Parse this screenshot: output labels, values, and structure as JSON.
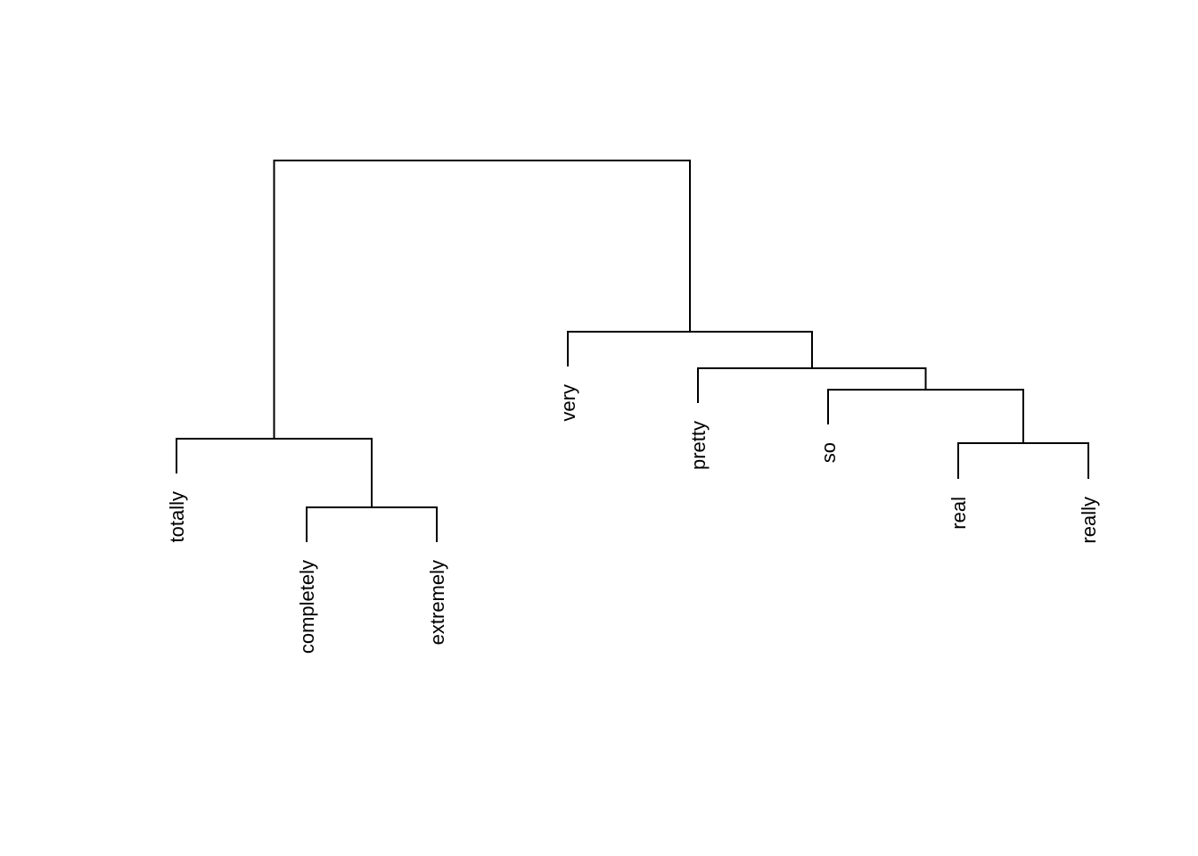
{
  "diagram": {
    "type": "dendrogram",
    "leaves": [
      "totally",
      "completely",
      "extremely",
      "very",
      "pretty",
      "so",
      "real",
      "really"
    ],
    "merges": [
      {
        "id": "m1",
        "children": [
          "real",
          "really"
        ]
      },
      {
        "id": "m2",
        "children": [
          "so",
          "m1"
        ]
      },
      {
        "id": "m3",
        "children": [
          "pretty",
          "m2"
        ]
      },
      {
        "id": "m4",
        "children": [
          "very",
          "m3"
        ]
      },
      {
        "id": "m5",
        "children": [
          "completely",
          "extremely"
        ]
      },
      {
        "id": "m6",
        "children": [
          "totally",
          "m5"
        ]
      },
      {
        "id": "m7",
        "children": [
          "m6",
          "m4"
        ]
      }
    ],
    "line_color": "#000000",
    "background": "#ffffff"
  }
}
